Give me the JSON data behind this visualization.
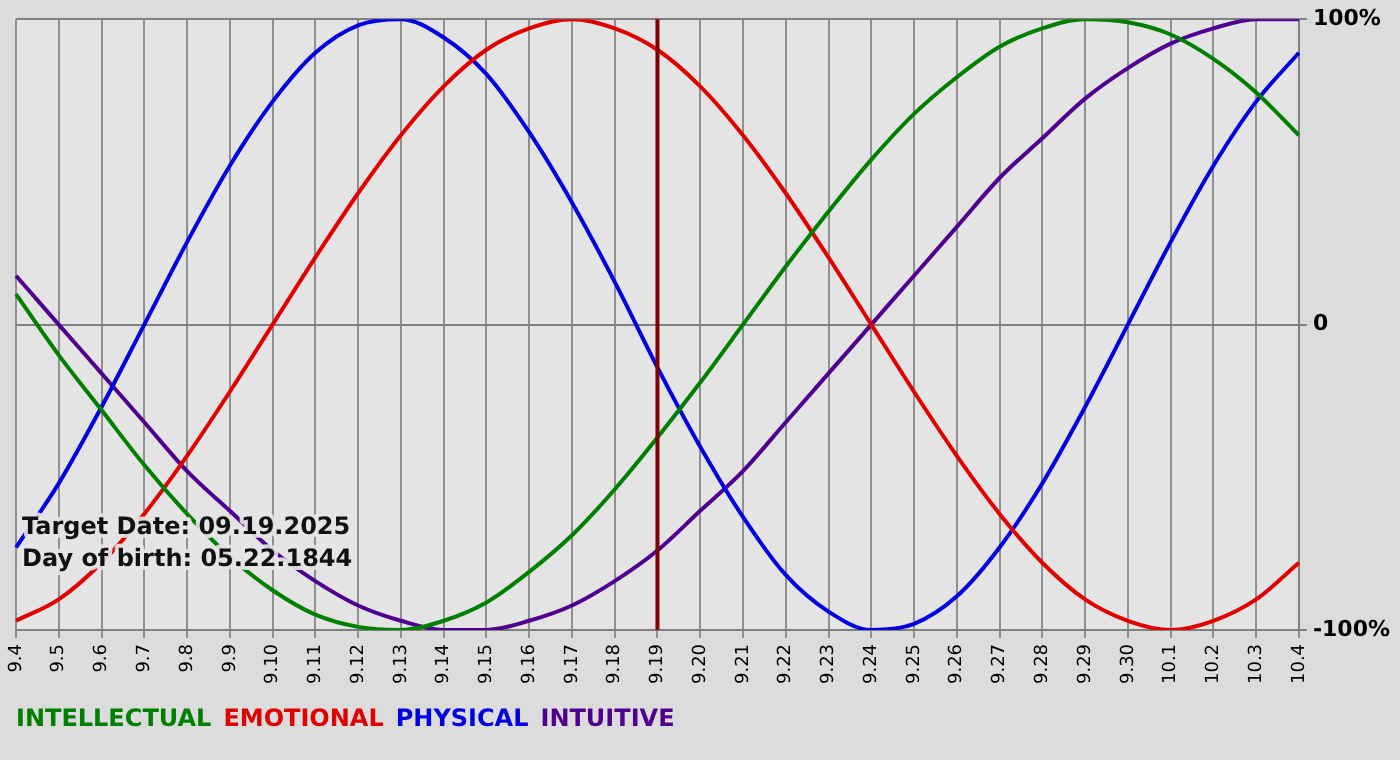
{
  "chart_data": {
    "type": "line",
    "categories": [
      "9.4",
      "9.5",
      "9.6",
      "9.7",
      "9.8",
      "9.9",
      "9.10",
      "9.11",
      "9.12",
      "9.13",
      "9.14",
      "9.15",
      "9.16",
      "9.17",
      "9.18",
      "9.19",
      "9.20",
      "9.21",
      "9.22",
      "9.23",
      "9.24",
      "9.25",
      "9.26",
      "9.27",
      "9.28",
      "9.29",
      "9.30",
      "10.1",
      "10.2",
      "10.3",
      "10.4"
    ],
    "series": [
      {
        "name": "INTELLECTUAL",
        "color": "#008000",
        "values": [
          10,
          -10,
          -28,
          -46,
          -62,
          -76,
          -87,
          -95,
          -99,
          -100,
          -97,
          -91,
          -81,
          -69,
          -54,
          -37,
          -19,
          0,
          19,
          37,
          54,
          69,
          81,
          91,
          97,
          100,
          99,
          95,
          87,
          76,
          62
        ]
      },
      {
        "name": "EMOTIONAL",
        "color": "#e00000",
        "values": [
          -97,
          -90,
          -78,
          -62,
          -43,
          -22,
          0,
          22,
          43,
          62,
          78,
          90,
          97,
          100,
          97,
          90,
          78,
          62,
          43,
          22,
          0,
          -22,
          -43,
          -62,
          -78,
          -90,
          -97,
          -100,
          -97,
          -90,
          -78
        ]
      },
      {
        "name": "PHYSICAL",
        "color": "#0000e0",
        "values": [
          -73,
          -52,
          -27,
          0,
          27,
          52,
          73,
          89,
          98,
          100,
          94,
          82,
          63,
          40,
          14,
          -14,
          -40,
          -63,
          -82,
          -94,
          -100,
          -98,
          -89,
          -73,
          -52,
          -27,
          0,
          27,
          52,
          73,
          89
        ]
      },
      {
        "name": "INTUITIVE",
        "color": "#500090",
        "values": [
          16,
          0,
          -16,
          -32,
          -48,
          -61,
          -74,
          -84,
          -92,
          -97,
          -100,
          -100,
          -97,
          -92,
          -84,
          -74,
          -61,
          -48,
          -32,
          -16,
          0,
          16,
          32,
          48,
          61,
          74,
          84,
          92,
          97,
          100,
          100
        ]
      }
    ],
    "ylim": [
      -100,
      100
    ],
    "yticks": [
      {
        "value": 100,
        "label": "100%"
      },
      0,
      {
        "value": -100,
        "label": "-100%"
      }
    ],
    "grid": true,
    "legend": "bottom",
    "marker": "none",
    "line_style": "solid",
    "ref_lines": [
      {
        "axis": "x",
        "value": "9.19",
        "color": "#800000"
      }
    ],
    "annotations": [
      "Target Date: 09.19.2025",
      "Day of birth: 05.22.1844"
    ]
  }
}
